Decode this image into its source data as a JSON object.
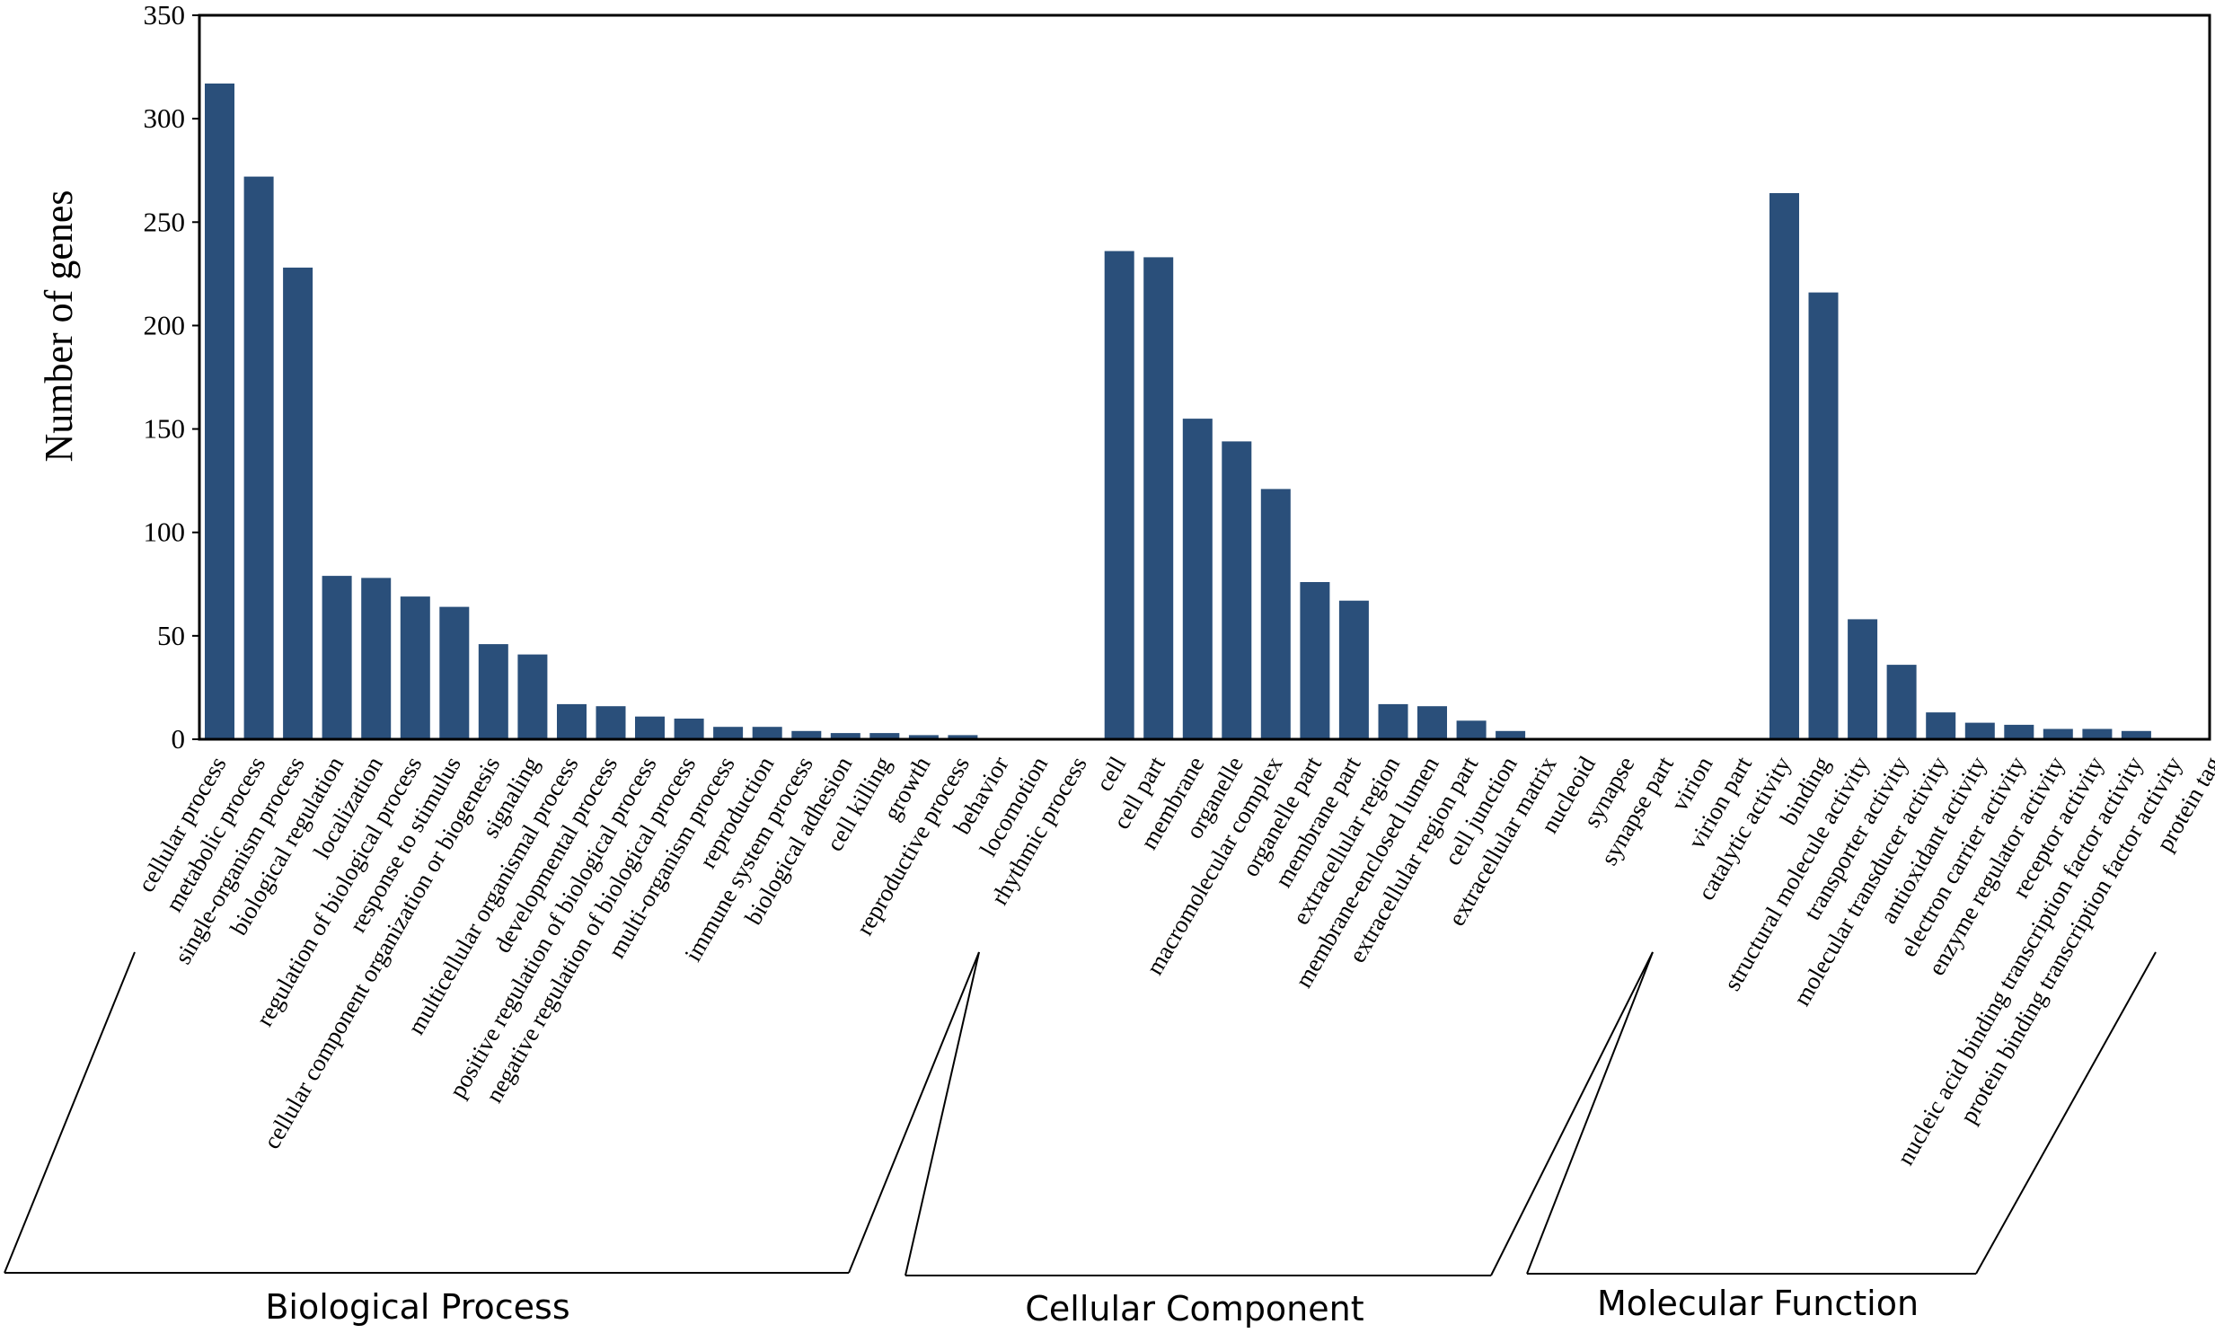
{
  "chart_data": {
    "type": "bar",
    "title": "",
    "xlabel": "",
    "ylabel": "Number of genes",
    "ylim": [
      0,
      350
    ],
    "yticks": [
      0,
      50,
      100,
      150,
      200,
      250,
      300,
      350
    ],
    "grid": false,
    "bar_color": "#2a4f7a",
    "categories": [
      "cellular process",
      "metabolic process",
      "single-organism process",
      "biological regulation",
      "localization",
      "regulation of biological process",
      "response to stimulus",
      "cellular component organization or biogenesis",
      "signaling",
      "multicellular organismal process",
      "developmental process",
      "positive regulation of biological process",
      "negative regulation of biological process",
      "multi-organism process",
      "reproduction",
      "immune system process",
      "biological adhesion",
      "cell killing",
      "growth",
      "reproductive process",
      "behavior",
      "locomotion",
      "rhythmic process",
      "cell",
      "cell part",
      "membrane",
      "organelle",
      "macromolecular complex",
      "organelle part",
      "membrane part",
      "extracellular region",
      "membrane-enclosed lumen",
      "extracellular region part",
      "cell junction",
      "extracellular matrix",
      "nucleoid",
      "synapse",
      "synapse part",
      "virion",
      "virion part",
      "catalytic activity",
      "binding",
      "structural molecule activity",
      "transporter activity",
      "molecular transducer activity",
      "antioxidant activity",
      "electron carrier activity",
      "enzyme regulator activity",
      "receptor activity",
      "nucleic acid binding transcription factor activity",
      "protein binding transcription factor activity",
      "protein tag"
    ],
    "values": [
      317,
      272,
      228,
      79,
      78,
      69,
      64,
      46,
      41,
      17,
      16,
      11,
      10,
      6,
      6,
      4,
      3,
      3,
      2,
      2,
      0,
      0,
      0,
      236,
      233,
      155,
      144,
      121,
      76,
      67,
      17,
      16,
      9,
      4,
      0,
      0,
      0,
      0,
      0,
      0,
      264,
      216,
      58,
      36,
      13,
      8,
      7,
      5,
      5,
      4,
      0,
      0
    ],
    "groups": [
      {
        "name": "Biological Process",
        "start": 0,
        "end": 22
      },
      {
        "name": "Cellular Component",
        "start": 23,
        "end": 39
      },
      {
        "name": "Molecular Function",
        "start": 40,
        "end": 51
      }
    ]
  }
}
